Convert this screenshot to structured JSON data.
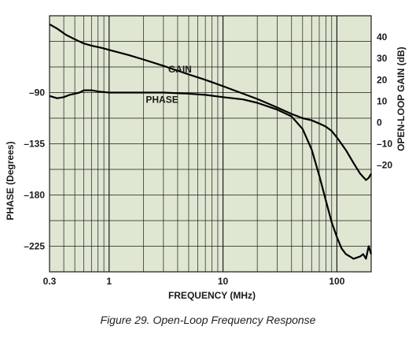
{
  "caption": "Figure 29. Open-Loop Frequency Response",
  "colors": {
    "plot_bg": "#dfe7d2",
    "grid": "#1a1a1a",
    "curve": "#000000"
  },
  "chart_data": {
    "type": "line",
    "title": "",
    "xlabel": "FREQUENCY (MHz)",
    "xscale": "log",
    "xlim": [
      0.3,
      200
    ],
    "x_ticks": [
      {
        "value": 0.3,
        "label": "0.3"
      },
      {
        "value": 1,
        "label": "1"
      },
      {
        "value": 10,
        "label": "10"
      },
      {
        "value": 100,
        "label": "100"
      }
    ],
    "y_right_label": "OPEN-LOOP GAIN (dB)",
    "y_right_lim": [
      -70,
      50
    ],
    "y_right_ticks": [
      {
        "value": 40,
        "label": "40"
      },
      {
        "value": 30,
        "label": "30"
      },
      {
        "value": 20,
        "label": "20"
      },
      {
        "value": 10,
        "label": "10"
      },
      {
        "value": 0,
        "label": "0"
      },
      {
        "value": -10,
        "label": "–10"
      },
      {
        "value": -20,
        "label": "–20"
      }
    ],
    "y_left_label": "PHASE (Degrees)",
    "y_left_lim": [
      -247.5,
      -22.5
    ],
    "y_left_ticks": [
      {
        "value": -90,
        "label": "–90"
      },
      {
        "value": -135,
        "label": "–135"
      },
      {
        "value": -180,
        "label": "–180"
      },
      {
        "value": -225,
        "label": "–225"
      }
    ],
    "grid": true,
    "series": [
      {
        "name": "GAIN",
        "axis": "right",
        "x": [
          0.3,
          0.35,
          0.42,
          0.5,
          0.6,
          0.7,
          0.85,
          1,
          1.5,
          2,
          3,
          5,
          7,
          10,
          15,
          20,
          30,
          40,
          50,
          60,
          70,
          80,
          90,
          100,
          120,
          140,
          160,
          180,
          190,
          200
        ],
        "y": [
          46,
          44,
          41,
          39,
          37,
          36,
          35,
          34,
          31.5,
          29.5,
          26.5,
          22.5,
          20,
          17,
          13.5,
          11,
          7,
          4,
          2,
          1,
          -0.5,
          -2,
          -4,
          -7,
          -13,
          -19,
          -24,
          -27,
          -26,
          -24
        ]
      },
      {
        "name": "PHASE",
        "axis": "left",
        "x": [
          0.3,
          0.35,
          0.4,
          0.45,
          0.5,
          0.55,
          0.6,
          0.7,
          0.8,
          1,
          1.5,
          2,
          3,
          5,
          7,
          10,
          15,
          20,
          30,
          40,
          50,
          60,
          70,
          80,
          90,
          100,
          110,
          120,
          130,
          140,
          150,
          160,
          170,
          180,
          190,
          200
        ],
        "y": [
          -93,
          -95,
          -94,
          -92,
          -91,
          -90,
          -88,
          -88,
          -89,
          -90,
          -90,
          -90,
          -90,
          -91,
          -92,
          -94,
          -96,
          -99,
          -105,
          -111,
          -122,
          -140,
          -163,
          -185,
          -204,
          -217,
          -227,
          -232,
          -234,
          -236,
          -235,
          -234,
          -232,
          -236,
          -225,
          -232
        ]
      }
    ]
  }
}
